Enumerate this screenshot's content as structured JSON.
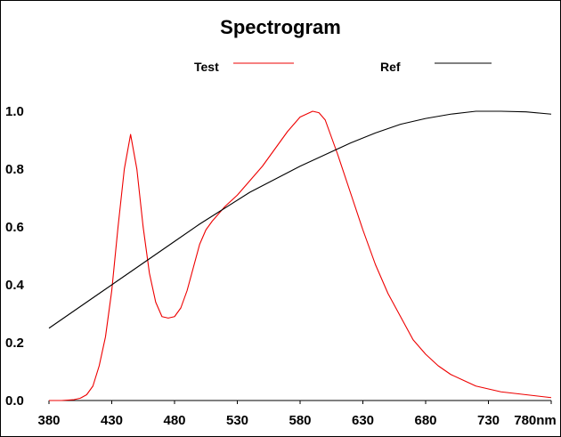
{
  "chart_data": {
    "type": "line",
    "title": "Spectrogram",
    "xlabel": "",
    "ylabel": "",
    "xlim": [
      380,
      780
    ],
    "ylim": [
      0.0,
      1.0
    ],
    "x_tick_labels": [
      "380",
      "430",
      "480",
      "530",
      "580",
      "630",
      "680",
      "730",
      "780nm"
    ],
    "y_tick_labels": [
      "0.0",
      "0.2",
      "0.4",
      "0.6",
      "0.8",
      "1.0"
    ],
    "legend_position": "top",
    "series": [
      {
        "name": "Test",
        "color": "#ee0000",
        "x": [
          380,
          390,
          400,
          405,
          410,
          415,
          420,
          425,
          430,
          435,
          440,
          445,
          450,
          455,
          460,
          465,
          470,
          475,
          480,
          485,
          490,
          495,
          500,
          505,
          510,
          520,
          530,
          540,
          550,
          560,
          570,
          580,
          590,
          595,
          600,
          605,
          610,
          620,
          630,
          640,
          650,
          660,
          670,
          680,
          690,
          700,
          710,
          720,
          730,
          740,
          750,
          760,
          770,
          780
        ],
        "y": [
          0.0,
          0.0,
          0.003,
          0.008,
          0.02,
          0.05,
          0.12,
          0.22,
          0.38,
          0.6,
          0.8,
          0.92,
          0.8,
          0.6,
          0.44,
          0.34,
          0.29,
          0.285,
          0.29,
          0.32,
          0.38,
          0.46,
          0.54,
          0.59,
          0.62,
          0.67,
          0.71,
          0.76,
          0.81,
          0.87,
          0.93,
          0.98,
          1.0,
          0.995,
          0.97,
          0.91,
          0.85,
          0.72,
          0.59,
          0.47,
          0.37,
          0.29,
          0.21,
          0.16,
          0.12,
          0.09,
          0.07,
          0.05,
          0.04,
          0.03,
          0.025,
          0.02,
          0.015,
          0.01
        ]
      },
      {
        "name": "Ref",
        "color": "#000000",
        "x": [
          380,
          400,
          420,
          440,
          460,
          480,
          500,
          520,
          540,
          560,
          580,
          600,
          620,
          640,
          660,
          680,
          700,
          720,
          740,
          760,
          780
        ],
        "y": [
          0.25,
          0.31,
          0.37,
          0.43,
          0.49,
          0.55,
          0.61,
          0.665,
          0.72,
          0.765,
          0.81,
          0.85,
          0.89,
          0.925,
          0.955,
          0.975,
          0.99,
          1.0,
          1.0,
          0.998,
          0.99
        ]
      }
    ]
  }
}
